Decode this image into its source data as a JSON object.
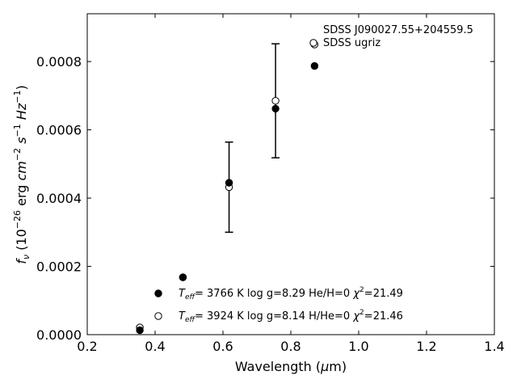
{
  "chart_data": {
    "type": "scatter",
    "xlabel": "Wavelength (μm)",
    "ylabel": "f_ν (10^-26 erg cm^-2 s^-1 Hz^-1)",
    "xlim": [
      0.2,
      1.4
    ],
    "ylim": [
      0.0,
      0.00094
    ],
    "xticks": [
      0.2,
      0.4,
      0.6,
      0.8,
      1.0,
      1.2,
      1.4
    ],
    "xtick_labels": [
      "0.2",
      "0.4",
      "0.6",
      "0.8",
      "1.0",
      "1.2",
      "1.4"
    ],
    "yticks": [
      0.0,
      0.0002,
      0.0004,
      0.0006,
      0.0008
    ],
    "ytick_labels": [
      "0.0000",
      "0.0002",
      "0.0004",
      "0.0006",
      "0.0008"
    ],
    "grid": false,
    "legend_top": {
      "placement": "top-right",
      "title": "SDSS J090027.55+204559.5",
      "entry": "SDSS ugriz"
    },
    "legend_bottom": {
      "placement": "bottom-center",
      "entries": [
        {
          "teff": "3766",
          "logg": "8.29",
          "comp": "He/H=0",
          "chi2": "21.49"
        },
        {
          "teff": "3924",
          "logg": "8.14",
          "comp": "H/He=0",
          "chi2": "21.46"
        }
      ]
    },
    "series": [
      {
        "marker": "filled-circle",
        "points": [
          {
            "x": 0.355,
            "y": 1.3e-05
          },
          {
            "x": 0.482,
            "y": 0.000168
          },
          {
            "x": 0.618,
            "y": 0.000445
          },
          {
            "x": 0.755,
            "y": 0.000662
          },
          {
            "x": 0.87,
            "y": 0.000787
          }
        ]
      },
      {
        "marker": "open-circle",
        "points": [
          {
            "x": 0.355,
            "y": 2.1e-05
          },
          {
            "x": 0.482,
            "y": 0.000168
          },
          {
            "x": 0.618,
            "y": 0.000432,
            "err": 0.000132
          },
          {
            "x": 0.755,
            "y": 0.000685,
            "err": 0.000167
          },
          {
            "x": 0.87,
            "y": 0.00085
          }
        ]
      }
    ]
  }
}
